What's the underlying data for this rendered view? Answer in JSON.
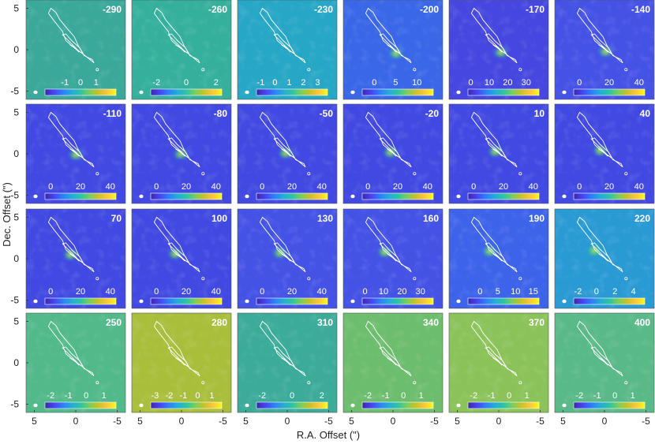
{
  "chart_data": {
    "type": "heatmap",
    "title": "",
    "xlabel": "R.A. Offset (\")",
    "ylabel": "Dec. Offset (\")",
    "xlim": [
      6,
      -6
    ],
    "ylim": [
      -6,
      6
    ],
    "x_ticks": [
      "5",
      "0",
      "-5"
    ],
    "y_ticks": [
      "5",
      "0",
      "-5"
    ],
    "colormap": [
      "#3e26a8",
      "#4743f1",
      "#2d7ff8",
      "#25abd8",
      "#2cc4a3",
      "#78ce5d",
      "#c8c229",
      "#fcc63b",
      "#f9fb0e"
    ],
    "contour_color": "#ffffff",
    "channels": [
      {
        "label": "-290",
        "bg": "#3aa89a",
        "cbar_ticks": [
          "-1",
          "0",
          "1"
        ],
        "cbar_tick_pos": [
          0.28,
          0.5,
          0.72
        ]
      },
      {
        "label": "-260",
        "bg": "#35b09c",
        "cbar_ticks": [
          "-2",
          "0",
          "2"
        ],
        "cbar_tick_pos": [
          0.08,
          0.5,
          0.92
        ]
      },
      {
        "label": "-230",
        "bg": "#27a7c6",
        "cbar_ticks": [
          "-1",
          "0",
          "1",
          "2",
          "3"
        ],
        "cbar_tick_pos": [
          0.06,
          0.26,
          0.46,
          0.66,
          0.86
        ]
      },
      {
        "label": "-200",
        "bg": "#3a67e8",
        "cbar_ticks": [
          "0",
          "5",
          "10"
        ],
        "cbar_tick_pos": [
          0.17,
          0.47,
          0.77
        ]
      },
      {
        "label": "-170",
        "bg": "#4547e0",
        "cbar_ticks": [
          "0",
          "10",
          "20",
          "30"
        ],
        "cbar_tick_pos": [
          0.04,
          0.3,
          0.56,
          0.82
        ]
      },
      {
        "label": "-140",
        "bg": "#4552e6",
        "cbar_ticks": [
          "0",
          "20",
          "40"
        ],
        "cbar_tick_pos": [
          0.08,
          0.5,
          0.92
        ]
      },
      {
        "label": "-110",
        "bg": "#4249e2",
        "cbar_ticks": [
          "0",
          "20",
          "40"
        ],
        "cbar_tick_pos": [
          0.08,
          0.5,
          0.92
        ]
      },
      {
        "label": "-80",
        "bg": "#4249e2",
        "cbar_ticks": [
          "0",
          "20",
          "40"
        ],
        "cbar_tick_pos": [
          0.08,
          0.5,
          0.92
        ]
      },
      {
        "label": "-50",
        "bg": "#4249e2",
        "cbar_ticks": [
          "0",
          "20",
          "40"
        ],
        "cbar_tick_pos": [
          0.08,
          0.5,
          0.92
        ]
      },
      {
        "label": "-20",
        "bg": "#4249e2",
        "cbar_ticks": [
          "0",
          "20",
          "40"
        ],
        "cbar_tick_pos": [
          0.08,
          0.5,
          0.92
        ]
      },
      {
        "label": "10",
        "bg": "#4249e2",
        "cbar_ticks": [
          "0",
          "20",
          "40"
        ],
        "cbar_tick_pos": [
          0.08,
          0.5,
          0.92
        ]
      },
      {
        "label": "40",
        "bg": "#4249e2",
        "cbar_ticks": [
          "0",
          "20",
          "40"
        ],
        "cbar_tick_pos": [
          0.08,
          0.5,
          0.92
        ]
      },
      {
        "label": "70",
        "bg": "#4249e2",
        "cbar_ticks": [
          "0",
          "20",
          "40"
        ],
        "cbar_tick_pos": [
          0.08,
          0.5,
          0.92
        ]
      },
      {
        "label": "100",
        "bg": "#4249e2",
        "cbar_ticks": [
          "0",
          "20",
          "40"
        ],
        "cbar_tick_pos": [
          0.08,
          0.5,
          0.92
        ]
      },
      {
        "label": "130",
        "bg": "#4452e6",
        "cbar_ticks": [
          "0",
          "20",
          "40"
        ],
        "cbar_tick_pos": [
          0.08,
          0.5,
          0.92
        ]
      },
      {
        "label": "160",
        "bg": "#4452e6",
        "cbar_ticks": [
          "0",
          "10",
          "20",
          "30"
        ],
        "cbar_tick_pos": [
          0.04,
          0.3,
          0.56,
          0.82
        ]
      },
      {
        "label": "190",
        "bg": "#3d63ea",
        "cbar_ticks": [
          "0",
          "5",
          "10",
          "15"
        ],
        "cbar_tick_pos": [
          0.17,
          0.42,
          0.67,
          0.92
        ]
      },
      {
        "label": "220",
        "bg": "#2a9ad4",
        "cbar_ticks": [
          "-2",
          "0",
          "2",
          "4"
        ],
        "cbar_tick_pos": [
          0.06,
          0.32,
          0.58,
          0.84
        ]
      },
      {
        "label": "250",
        "bg": "#52b98a",
        "cbar_ticks": [
          "-2",
          "-1",
          "0",
          "1"
        ],
        "cbar_tick_pos": [
          0.08,
          0.33,
          0.58,
          0.83
        ]
      },
      {
        "label": "280",
        "bg": "#a9bf3c",
        "cbar_ticks": [
          "-3",
          "-2",
          "-1",
          "0",
          "1"
        ],
        "cbar_tick_pos": [
          0.06,
          0.26,
          0.46,
          0.66,
          0.86
        ]
      },
      {
        "label": "310",
        "bg": "#3cab9a",
        "cbar_ticks": [
          "-2",
          "0",
          "2"
        ],
        "cbar_tick_pos": [
          0.08,
          0.5,
          0.92
        ]
      },
      {
        "label": "340",
        "bg": "#6dbd6e",
        "cbar_ticks": [
          "-2",
          "-1",
          "0",
          "1"
        ],
        "cbar_tick_pos": [
          0.08,
          0.33,
          0.58,
          0.83
        ]
      },
      {
        "label": "370",
        "bg": "#8bc35a",
        "cbar_ticks": [
          "-2",
          "-1",
          "0",
          "1"
        ],
        "cbar_tick_pos": [
          0.08,
          0.33,
          0.58,
          0.83
        ]
      },
      {
        "label": "400",
        "bg": "#5ab988",
        "cbar_ticks": [
          "-2",
          "-1",
          "0",
          "1"
        ],
        "cbar_tick_pos": [
          0.08,
          0.33,
          0.58,
          0.83
        ]
      }
    ]
  }
}
